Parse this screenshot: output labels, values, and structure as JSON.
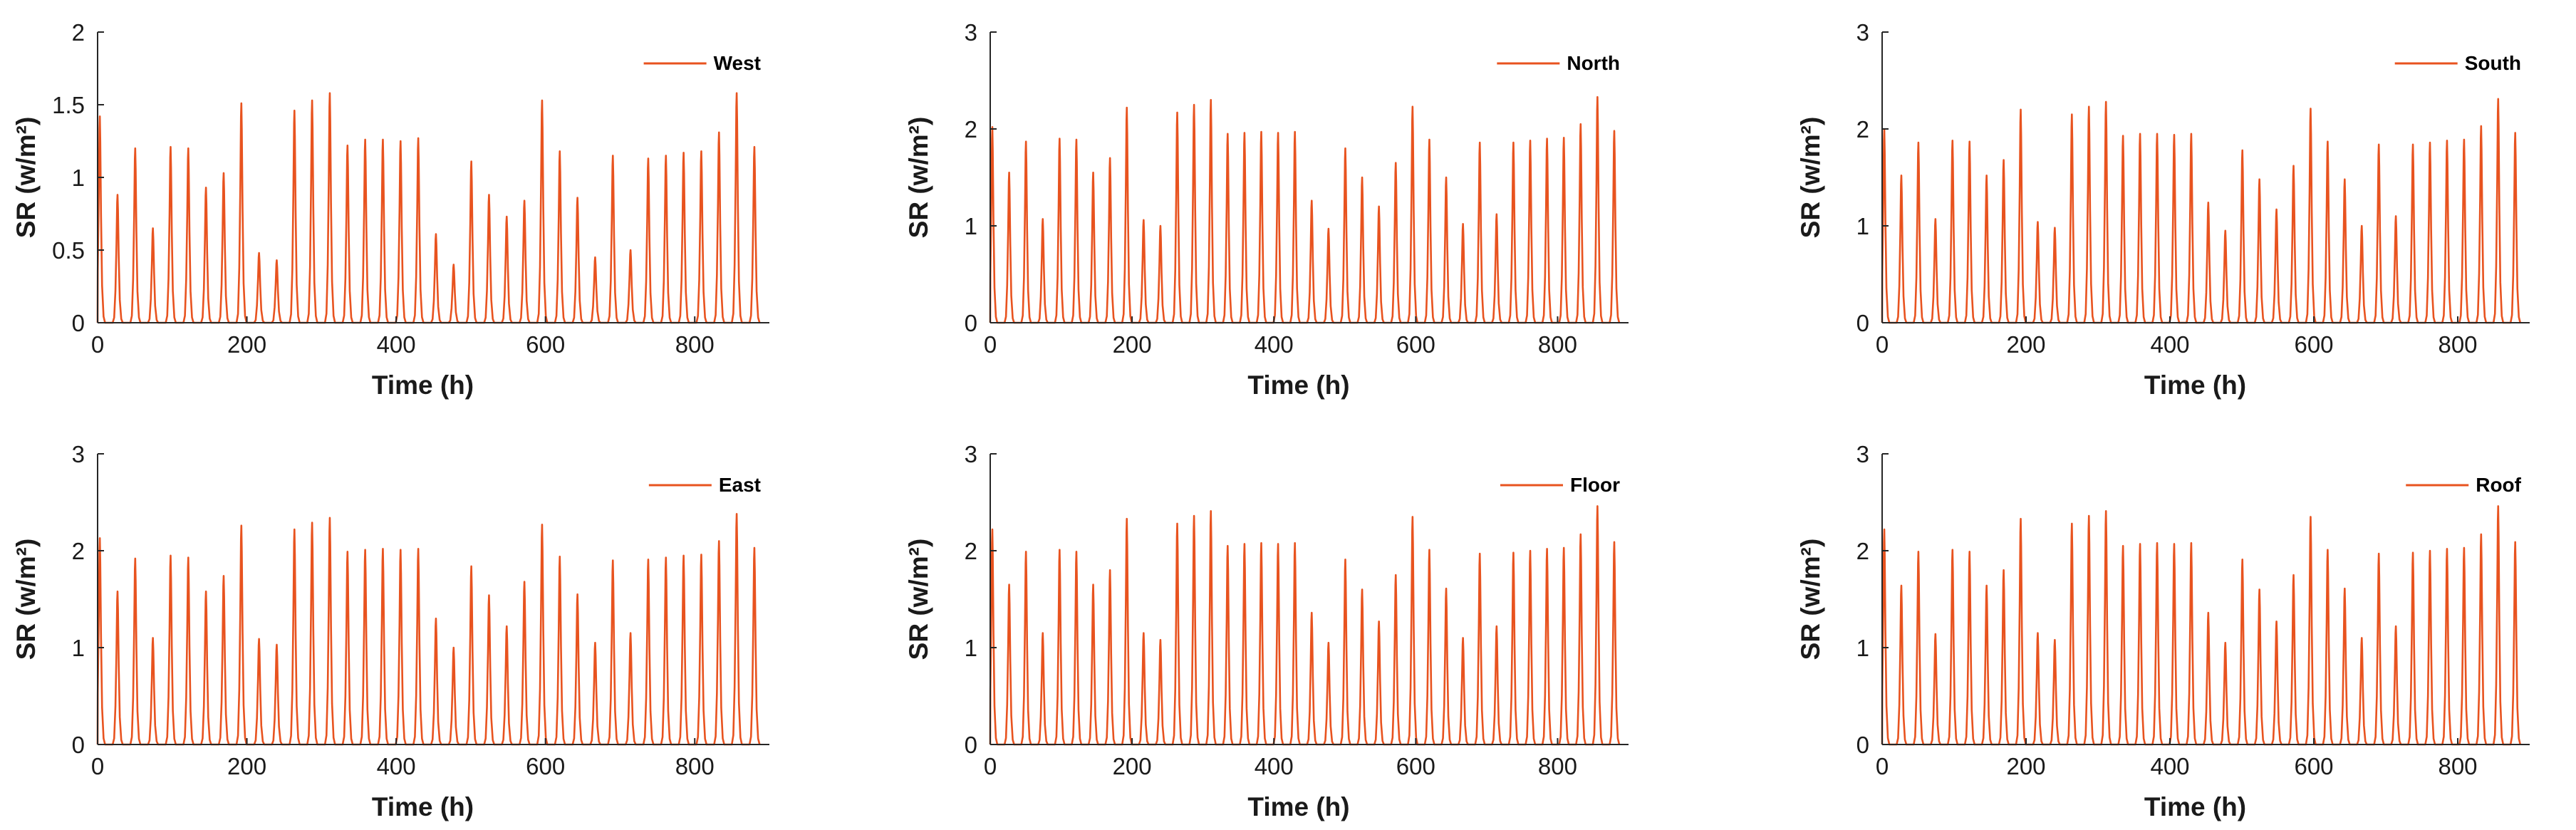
{
  "colors": {
    "series": "#e8531f",
    "axis": "#262626",
    "text": "#1a1a1a"
  },
  "chart_data": [
    {
      "type": "line",
      "series": [
        {
          "name": "West"
        }
      ],
      "xlabel": "Time (h)",
      "ylabel": "SR (w/m²)",
      "xlim": [
        0,
        900
      ],
      "ylim": [
        0,
        2
      ],
      "xticks": [
        0,
        200,
        400,
        600,
        800
      ],
      "yticks": [
        0,
        0.5,
        1,
        1.5,
        2
      ],
      "legend_position": "top-right",
      "daily_peaks": [
        1.42,
        0.88,
        1.2,
        0.65,
        1.21,
        1.2,
        0.93,
        1.03,
        1.51,
        0.48,
        0.43,
        1.46,
        1.53,
        1.58,
        1.22,
        1.26,
        1.26,
        1.25,
        1.27,
        0.61,
        0.4,
        1.11,
        0.88,
        0.73,
        0.84,
        1.53,
        1.18,
        0.86,
        0.45,
        1.15,
        0.5,
        1.13,
        1.15,
        1.17,
        1.18,
        1.31,
        1.58,
        1.21
      ]
    },
    {
      "type": "line",
      "series": [
        {
          "name": "North"
        }
      ],
      "xlabel": "Time (h)",
      "ylabel": "SR (w/m²)",
      "xlim": [
        0,
        900
      ],
      "ylim": [
        0,
        3
      ],
      "xticks": [
        0,
        200,
        400,
        600,
        800
      ],
      "yticks": [
        0,
        1,
        2,
        3
      ],
      "legend_position": "top-right",
      "daily_peaks": [
        2.02,
        1.55,
        1.87,
        1.07,
        1.9,
        1.89,
        1.55,
        1.7,
        2.22,
        1.06,
        1.0,
        2.17,
        2.25,
        2.3,
        1.95,
        1.96,
        1.97,
        1.96,
        1.97,
        1.26,
        0.97,
        1.8,
        1.5,
        1.2,
        1.65,
        2.23,
        1.89,
        1.5,
        1.02,
        1.86,
        1.12,
        1.86,
        1.88,
        1.9,
        1.91,
        2.05,
        2.33,
        1.98
      ]
    },
    {
      "type": "line",
      "series": [
        {
          "name": "South"
        }
      ],
      "xlabel": "Time (h)",
      "ylabel": "SR (w/m²)",
      "xlim": [
        0,
        900
      ],
      "ylim": [
        0,
        3
      ],
      "xticks": [
        0,
        200,
        400,
        600,
        800
      ],
      "yticks": [
        0,
        1,
        2,
        3
      ],
      "legend_position": "top-right",
      "daily_peaks": [
        2.0,
        1.52,
        1.86,
        1.07,
        1.88,
        1.87,
        1.52,
        1.68,
        2.2,
        1.04,
        0.98,
        2.15,
        2.23,
        2.28,
        1.93,
        1.95,
        1.95,
        1.94,
        1.95,
        1.24,
        0.95,
        1.78,
        1.48,
        1.17,
        1.62,
        2.21,
        1.87,
        1.48,
        1.0,
        1.84,
        1.1,
        1.84,
        1.86,
        1.88,
        1.89,
        2.03,
        2.31,
        1.96
      ]
    },
    {
      "type": "line",
      "series": [
        {
          "name": "East"
        }
      ],
      "xlabel": "Time (h)",
      "ylabel": "SR (w/m²)",
      "xlim": [
        0,
        900
      ],
      "ylim": [
        0,
        3
      ],
      "xticks": [
        0,
        200,
        400,
        600,
        800
      ],
      "yticks": [
        0,
        1,
        2,
        3
      ],
      "legend_position": "top-right",
      "daily_peaks": [
        2.13,
        1.58,
        1.92,
        1.1,
        1.95,
        1.93,
        1.58,
        1.74,
        2.26,
        1.09,
        1.03,
        2.22,
        2.29,
        2.34,
        1.99,
        2.01,
        2.02,
        2.01,
        2.02,
        1.3,
        1.0,
        1.84,
        1.54,
        1.22,
        1.68,
        2.27,
        1.94,
        1.55,
        1.05,
        1.9,
        1.15,
        1.91,
        1.93,
        1.95,
        1.96,
        2.1,
        2.38,
        2.03
      ]
    },
    {
      "type": "line",
      "series": [
        {
          "name": "Floor"
        }
      ],
      "xlabel": "Time (h)",
      "ylabel": "SR (w/m²)",
      "xlim": [
        0,
        900
      ],
      "ylim": [
        0,
        3
      ],
      "xticks": [
        0,
        200,
        400,
        600,
        800
      ],
      "yticks": [
        0,
        1,
        2,
        3
      ],
      "legend_position": "top-right",
      "daily_peaks": [
        2.22,
        1.65,
        1.99,
        1.15,
        2.01,
        1.99,
        1.65,
        1.8,
        2.33,
        1.15,
        1.08,
        2.28,
        2.36,
        2.41,
        2.05,
        2.07,
        2.08,
        2.07,
        2.08,
        1.36,
        1.05,
        1.91,
        1.6,
        1.27,
        1.75,
        2.35,
        2.01,
        1.61,
        1.1,
        1.97,
        1.22,
        1.98,
        2.0,
        2.02,
        2.03,
        2.17,
        2.46,
        2.09
      ]
    },
    {
      "type": "line",
      "series": [
        {
          "name": "Roof"
        }
      ],
      "xlabel": "Time (h)",
      "ylabel": "SR (w/m²)",
      "xlim": [
        0,
        900
      ],
      "ylim": [
        0,
        3
      ],
      "xticks": [
        0,
        200,
        400,
        600,
        800
      ],
      "yticks": [
        0,
        1,
        2,
        3
      ],
      "legend_position": "top-right",
      "daily_peaks": [
        2.22,
        1.64,
        1.99,
        1.14,
        2.01,
        1.99,
        1.64,
        1.8,
        2.33,
        1.15,
        1.08,
        2.28,
        2.36,
        2.41,
        2.05,
        2.07,
        2.08,
        2.07,
        2.08,
        1.36,
        1.05,
        1.91,
        1.6,
        1.27,
        1.75,
        2.35,
        2.01,
        1.61,
        1.1,
        1.97,
        1.22,
        1.98,
        2.0,
        2.02,
        2.03,
        2.17,
        2.46,
        2.09
      ]
    }
  ]
}
